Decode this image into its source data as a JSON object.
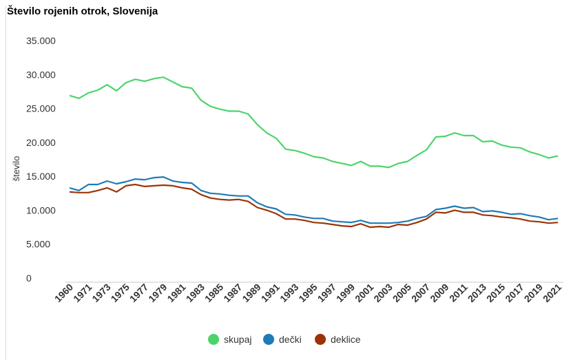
{
  "chart_data": {
    "type": "line",
    "title": "Število rojenih otrok, Slovenija",
    "ylabel": "število",
    "xlabel": "",
    "ylim": [
      0,
      35000
    ],
    "y_ticks": [
      "0",
      "5.000",
      "10.000",
      "15.000",
      "20.000",
      "25.000",
      "30.000",
      "35.000"
    ],
    "y_tick_values": [
      0,
      5000,
      10000,
      15000,
      20000,
      25000,
      30000,
      35000
    ],
    "x_tick_labels": [
      "1960",
      "1971",
      "1973",
      "1975",
      "1977",
      "1979",
      "1981",
      "1983",
      "1985",
      "1987",
      "1989",
      "1991",
      "1993",
      "1995",
      "1997",
      "1999",
      "2001",
      "2003",
      "2005",
      "2007",
      "2009",
      "2011",
      "2013",
      "2015",
      "2017",
      "2019",
      "2021"
    ],
    "grid": false,
    "legend_position": "bottom",
    "categories": [
      "1960",
      "1970",
      "1971",
      "1972",
      "1973",
      "1974",
      "1975",
      "1976",
      "1977",
      "1978",
      "1979",
      "1980",
      "1981",
      "1982",
      "1983",
      "1984",
      "1985",
      "1986",
      "1987",
      "1988",
      "1989",
      "1990",
      "1991",
      "1992",
      "1993",
      "1994",
      "1995",
      "1996",
      "1997",
      "1998",
      "1999",
      "2000",
      "2001",
      "2002",
      "2003",
      "2004",
      "2005",
      "2006",
      "2007",
      "2008",
      "2009",
      "2010",
      "2011",
      "2012",
      "2013",
      "2014",
      "2015",
      "2016",
      "2017",
      "2018",
      "2019",
      "2020",
      "2021"
    ],
    "series": [
      {
        "name": "skupaj",
        "color": "#4cd46a",
        "values": [
          26900,
          26500,
          27300,
          27700,
          28500,
          27600,
          28800,
          29300,
          29000,
          29400,
          29600,
          28900,
          28200,
          28000,
          26200,
          25300,
          24900,
          24600,
          24600,
          24200,
          22600,
          21400,
          20600,
          19000,
          18800,
          18400,
          17900,
          17700,
          17200,
          16900,
          16600,
          17200,
          16500,
          16500,
          16300,
          16900,
          17200,
          18100,
          18900,
          20800,
          20900,
          21400,
          21000,
          21000,
          20100,
          20200,
          19600,
          19300,
          19200,
          18600,
          18200,
          17700,
          18000
        ]
      },
      {
        "name": "dečki",
        "color": "#1e7bb5",
        "values": [
          13300,
          12900,
          13800,
          13800,
          14300,
          13900,
          14200,
          14600,
          14500,
          14800,
          14900,
          14300,
          14100,
          14000,
          12900,
          12500,
          12400,
          12200,
          12100,
          12100,
          11100,
          10500,
          10200,
          9400,
          9300,
          9000,
          8800,
          8800,
          8400,
          8300,
          8200,
          8500,
          8100,
          8100,
          8100,
          8200,
          8400,
          8800,
          9100,
          10100,
          10300,
          10600,
          10300,
          10400,
          9800,
          9900,
          9700,
          9400,
          9500,
          9200,
          9000,
          8600,
          8800
        ]
      },
      {
        "name": "deklice",
        "color": "#9b3306",
        "values": [
          12700,
          12600,
          12600,
          12900,
          13300,
          12700,
          13600,
          13800,
          13500,
          13600,
          13700,
          13600,
          13300,
          13100,
          12300,
          11800,
          11600,
          11500,
          11600,
          11300,
          10400,
          10000,
          9500,
          8700,
          8700,
          8500,
          8200,
          8100,
          7900,
          7700,
          7600,
          8000,
          7500,
          7600,
          7500,
          7900,
          7800,
          8200,
          8700,
          9700,
          9600,
          10000,
          9700,
          9700,
          9300,
          9200,
          9000,
          8900,
          8700,
          8400,
          8300,
          8100,
          8200
        ]
      }
    ]
  }
}
